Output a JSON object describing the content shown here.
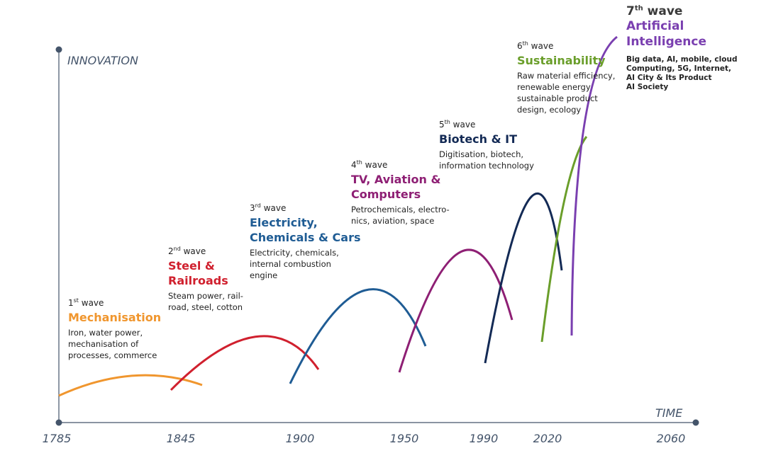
{
  "axes": {
    "y_label": "INNOVATION",
    "x_label": "TIME",
    "years": [
      "1785",
      "1845",
      "1900",
      "1950",
      "1990",
      "2020",
      "2060"
    ]
  },
  "waves": [
    {
      "num": "1",
      "sup": "st",
      "suffix": " wave",
      "title": "Mechanisation",
      "color": "#f0962e",
      "desc_lines": [
        "Iron, water power,",
        "mechanisation of",
        "processes, commerce"
      ]
    },
    {
      "num": "2",
      "sup": "nd",
      "suffix": " wave",
      "title_lines": [
        "Steel &",
        "Railroads"
      ],
      "color": "#d0202e",
      "desc_lines": [
        "Steam power, rail-",
        "road, steel, cotton"
      ]
    },
    {
      "num": "3",
      "sup": "rd",
      "suffix": " wave",
      "title_lines": [
        "Electricity,",
        "Chemicals & Cars"
      ],
      "color": "#1f5c94",
      "desc_lines": [
        "Electricity, chemicals,",
        "internal combustion",
        "engine"
      ]
    },
    {
      "num": "4",
      "sup": "th",
      "suffix": " wave",
      "title_lines": [
        "TV, Aviation &",
        "Computers"
      ],
      "color": "#8e1f74",
      "desc_lines": [
        "Petrochemicals, electro-",
        "nics, aviation, space"
      ]
    },
    {
      "num": "5",
      "sup": "th",
      "suffix": " wave",
      "title": "Biotech & IT",
      "color": "#132a55",
      "desc_lines": [
        "Digitisation, biotech,",
        "information technology"
      ]
    },
    {
      "num": "6",
      "sup": "th",
      "suffix": " wave",
      "title": "Sustainability",
      "color": "#6a9e2a",
      "desc_lines": [
        "Raw material efficiency,",
        "renewable energy",
        "sustainable product",
        "design, ecology"
      ]
    },
    {
      "num": "7",
      "sup": "th",
      "suffix": " wave",
      "title": "Artificial Intelligence",
      "color": "#7a3fb0",
      "desc_lines": [
        "Big data, AI, mobile, cloud",
        "Computing, 5G, Internet,",
        "AI City & Its Product",
        "AI Society"
      ]
    }
  ],
  "colors": {
    "axis": "#44546a",
    "text": "#222222"
  }
}
